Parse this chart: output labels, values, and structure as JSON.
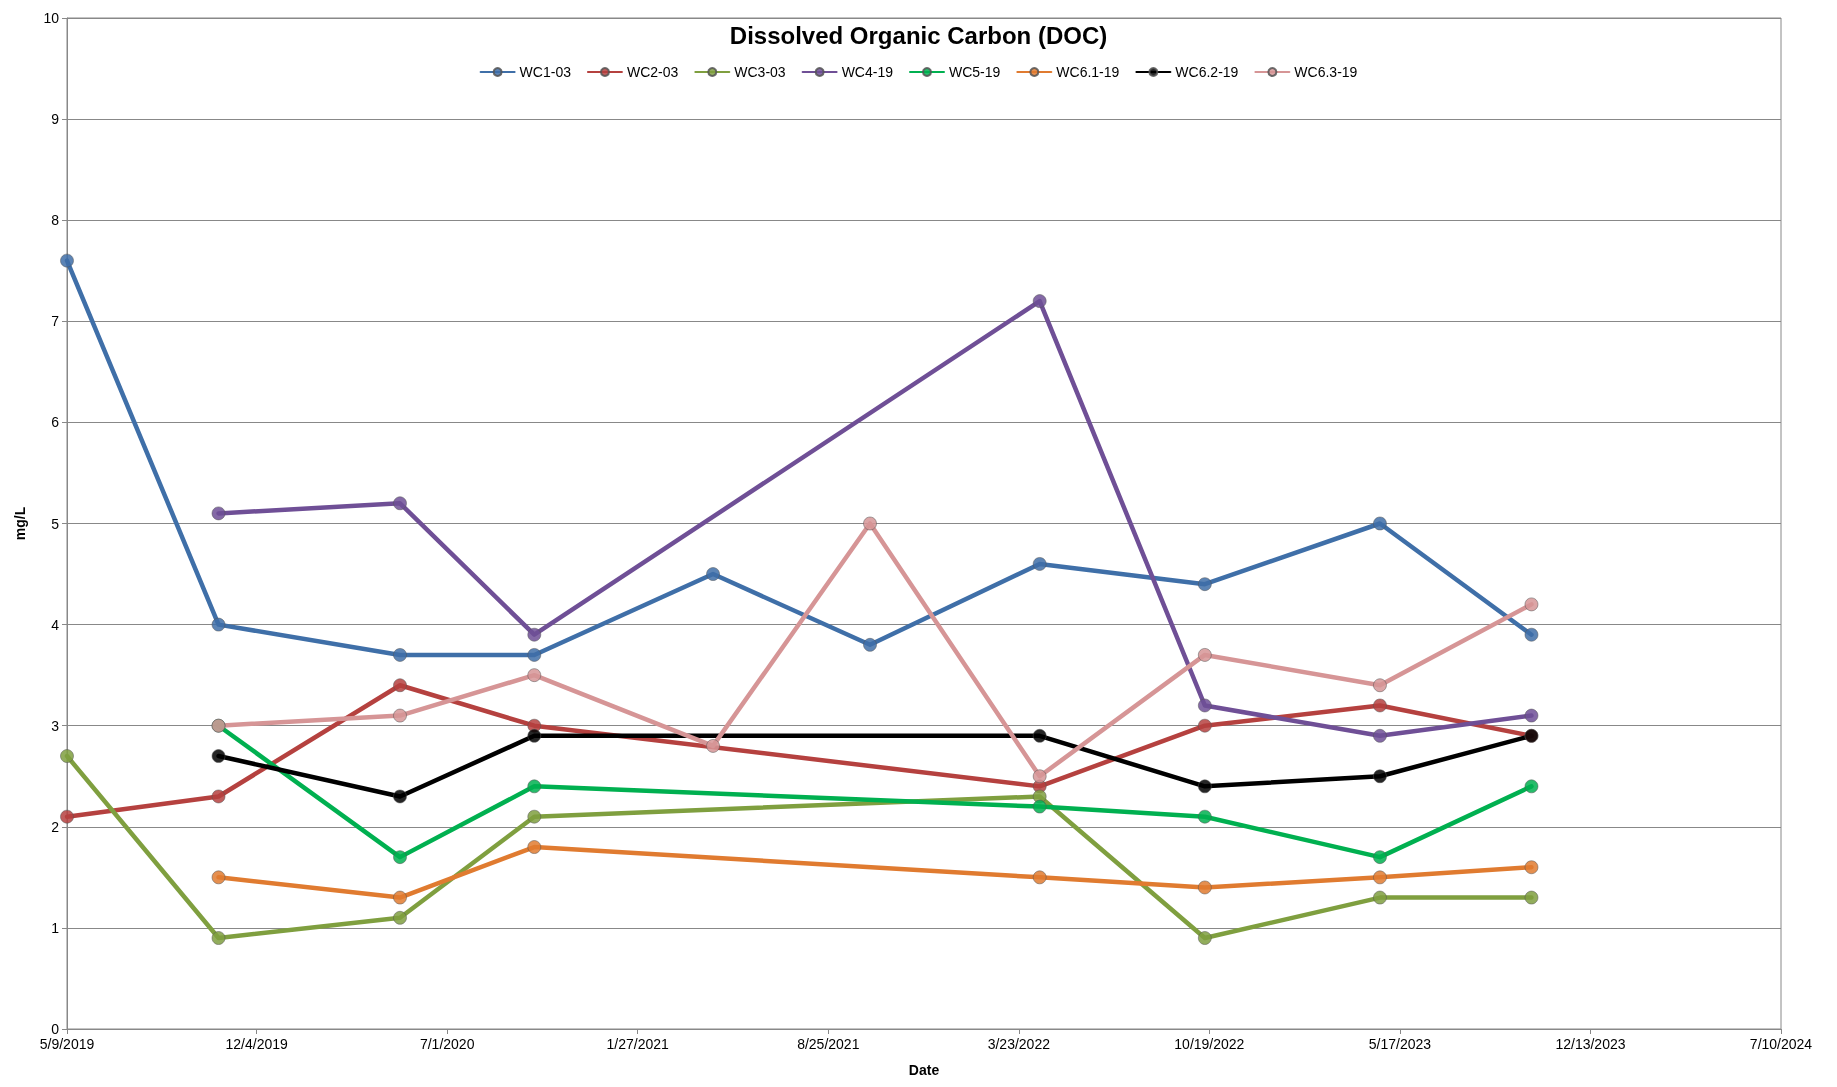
{
  "chart_data": {
    "type": "line",
    "title": "Dissolved Organic Carbon (DOC)",
    "xlabel": "Date",
    "ylabel": "mg/L",
    "xlim": [
      "2019-05-09",
      "2024-07-10"
    ],
    "xticks": [
      {
        "value": "2019-05-09",
        "label": "5/9/2019"
      },
      {
        "value": "2019-12-04",
        "label": "12/4/2019"
      },
      {
        "value": "2020-07-01",
        "label": "7/1/2020"
      },
      {
        "value": "2021-01-27",
        "label": "1/27/2021"
      },
      {
        "value": "2021-08-25",
        "label": "8/25/2021"
      },
      {
        "value": "2022-03-23",
        "label": "3/23/2022"
      },
      {
        "value": "2022-10-19",
        "label": "10/19/2022"
      },
      {
        "value": "2023-05-17",
        "label": "5/17/2023"
      },
      {
        "value": "2023-12-13",
        "label": "12/13/2023"
      },
      {
        "value": "2024-07-10",
        "label": "7/10/2024"
      }
    ],
    "ylim": [
      0,
      10
    ],
    "yticks": [
      0,
      1,
      2,
      3,
      4,
      5,
      6,
      7,
      8,
      9,
      10
    ],
    "grid": "y",
    "legend": "top",
    "marker": "circle",
    "line_style": "solid",
    "series": [
      {
        "name": "WC1-03",
        "color": "#3f6fa8",
        "x": [
          "2019-05-09",
          "2019-10-23",
          "2020-05-10",
          "2020-10-05",
          "2021-04-20",
          "2021-10-10",
          "2022-04-15",
          "2022-10-14",
          "2023-04-25",
          "2023-10-09"
        ],
        "values": [
          7.6,
          4.0,
          3.7,
          3.7,
          4.5,
          3.8,
          4.6,
          4.4,
          5.0,
          3.9
        ]
      },
      {
        "name": "WC2-03",
        "color": "#b5413f",
        "x": [
          "2019-05-09",
          "2019-10-23",
          "2020-05-10",
          "2020-10-05",
          "2022-04-15",
          "2022-10-14",
          "2023-04-25",
          "2023-10-09"
        ],
        "values": [
          2.1,
          2.3,
          3.4,
          3.0,
          2.4,
          3.0,
          3.2,
          2.9
        ]
      },
      {
        "name": "WC3-03",
        "color": "#7f9f3f",
        "x": [
          "2019-05-09",
          "2019-10-23",
          "2020-05-10",
          "2020-10-05",
          "2022-04-15",
          "2022-10-14",
          "2023-04-25",
          "2023-10-09"
        ],
        "values": [
          2.7,
          0.9,
          1.1,
          2.1,
          2.3,
          0.9,
          1.3,
          1.3
        ]
      },
      {
        "name": "WC4-19",
        "color": "#6f4f96",
        "x": [
          "2019-10-23",
          "2020-05-10",
          "2020-10-05",
          "2022-04-15",
          "2022-10-14",
          "2023-04-25",
          "2023-10-09"
        ],
        "values": [
          5.1,
          5.2,
          3.9,
          7.2,
          3.2,
          2.9,
          3.1
        ]
      },
      {
        "name": "WC5-19",
        "color": "#00b050",
        "x": [
          "2019-10-23",
          "2020-05-10",
          "2020-10-05",
          "2022-04-15",
          "2022-10-14",
          "2023-04-25",
          "2023-10-09"
        ],
        "values": [
          3.0,
          1.7,
          2.4,
          2.2,
          2.1,
          1.7,
          2.4
        ]
      },
      {
        "name": "WC6.1-19",
        "color": "#e07b30",
        "x": [
          "2019-10-23",
          "2020-05-10",
          "2020-10-05",
          "2022-04-15",
          "2022-10-14",
          "2023-04-25",
          "2023-10-09"
        ],
        "values": [
          1.5,
          1.3,
          1.8,
          1.5,
          1.4,
          1.5,
          1.6
        ]
      },
      {
        "name": "WC6.2-19",
        "color": "#000000",
        "x": [
          "2019-10-23",
          "2020-05-10",
          "2020-10-05",
          "2022-04-15",
          "2022-10-14",
          "2023-04-25",
          "2023-10-09"
        ],
        "values": [
          2.7,
          2.3,
          2.9,
          2.9,
          2.4,
          2.5,
          2.9
        ]
      },
      {
        "name": "WC6.3-19",
        "color": "#d69596",
        "x": [
          "2019-10-23",
          "2020-05-10",
          "2020-10-05",
          "2021-04-20",
          "2021-10-10",
          "2022-04-15",
          "2022-10-14",
          "2023-04-25",
          "2023-10-09"
        ],
        "values": [
          3.0,
          3.1,
          3.5,
          2.8,
          5.0,
          2.5,
          3.7,
          3.4,
          4.2
        ]
      }
    ]
  }
}
